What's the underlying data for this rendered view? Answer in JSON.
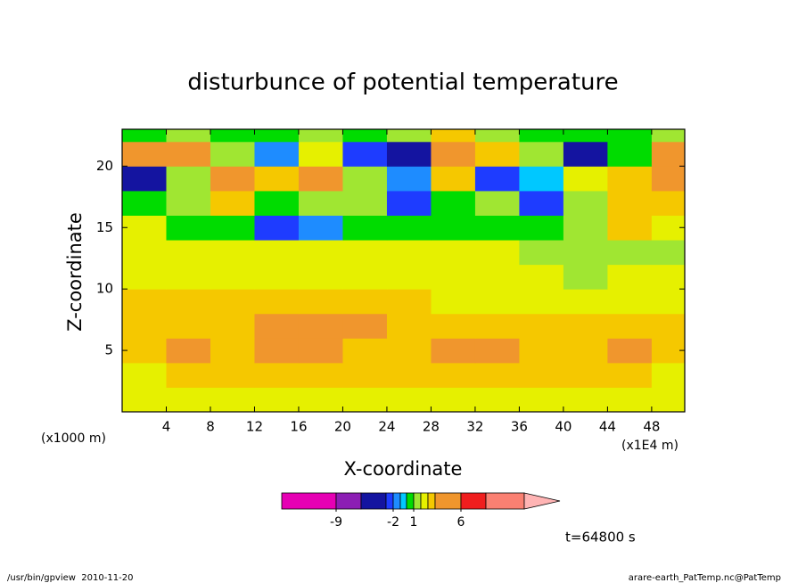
{
  "chart_data": {
    "type": "contour",
    "title": "disturbunce of potential temperature",
    "x_label": "X-coordinate",
    "y_label": "Z-coordinate",
    "x_unit": "(x1E4 m)",
    "y_unit": "(x1000 m)",
    "xlim": [
      0,
      51
    ],
    "ylim": [
      0,
      23
    ],
    "xticks": [
      4,
      8,
      12,
      16,
      20,
      24,
      28,
      32,
      36,
      40,
      44,
      48
    ],
    "yticks": [
      5,
      10,
      15,
      20
    ],
    "field": {
      "x": [
        2,
        6,
        10,
        14,
        18,
        22,
        26,
        30,
        34,
        38,
        42,
        46,
        50
      ],
      "z": [
        1,
        3,
        5,
        7,
        9,
        11,
        13,
        15,
        17,
        19,
        21,
        23
      ],
      "values": [
        [
          2.5,
          2.5,
          2.5,
          2.5,
          2.5,
          2.5,
          2.5,
          2.5,
          2.5,
          2.5,
          2.5,
          2.5,
          2.5
        ],
        [
          2.5,
          3.5,
          3.5,
          3.5,
          3.5,
          3.5,
          3.5,
          3.5,
          3.5,
          3.5,
          3.5,
          3.5,
          2.5
        ],
        [
          3.5,
          5,
          3.5,
          5,
          5,
          3.5,
          3.5,
          5,
          5,
          3.5,
          3.5,
          5,
          3.5
        ],
        [
          3.5,
          3.5,
          3.5,
          5,
          5,
          5,
          3.5,
          3.5,
          3.5,
          3.5,
          3.5,
          3.5,
          3.5
        ],
        [
          3.5,
          3.5,
          3.5,
          3.5,
          3.5,
          3.5,
          3.5,
          2.5,
          2.5,
          2.5,
          2.5,
          2.5,
          2.5
        ],
        [
          2.5,
          2.5,
          2.5,
          2.5,
          2.5,
          2.5,
          2.5,
          2.5,
          2.5,
          2.5,
          1.5,
          2.5,
          2.5
        ],
        [
          2.5,
          2.5,
          2.5,
          2.5,
          2.5,
          2.5,
          2.5,
          2.5,
          2.5,
          1.5,
          1.5,
          1.5,
          1.5
        ],
        [
          2.5,
          0.5,
          0.5,
          -2.5,
          -1.5,
          0.5,
          0.5,
          0.5,
          0.5,
          0.5,
          1.5,
          3.5,
          2.5
        ],
        [
          0.5,
          1.5,
          3.5,
          0.5,
          1.5,
          1.5,
          -2.5,
          0.5,
          1.5,
          -2.5,
          1.5,
          3.5,
          3.5
        ],
        [
          -4.5,
          1.5,
          5,
          3.5,
          5,
          1.5,
          -1.5,
          3.5,
          -2.5,
          -0.5,
          2.5,
          3.5,
          5
        ],
        [
          5,
          5,
          1.5,
          -1.5,
          2.5,
          -2.5,
          -4.5,
          5,
          3.5,
          1.5,
          -4.5,
          0.5,
          5
        ],
        [
          0.5,
          1.5,
          0.5,
          0.5,
          1.5,
          0.5,
          1.5,
          3.5,
          1.5,
          0.5,
          0.5,
          0.5,
          1.5
        ]
      ]
    },
    "colorbar": {
      "levels": [
        -15,
        -9,
        -6,
        -3,
        -2,
        -1,
        0,
        1,
        2,
        3,
        4,
        6,
        9,
        15
      ],
      "colors": [
        "#e600b4",
        "#8c1eb4",
        "#1414a0",
        "#1e3cff",
        "#1e8cff",
        "#00c8ff",
        "#00dc00",
        "#a0e632",
        "#e6f000",
        "#f5c800",
        "#f0962d",
        "#f01e1e",
        "#fa8072"
      ],
      "extend_color": "#ffb4b4",
      "ticks": [
        -9,
        -2,
        1,
        6
      ]
    },
    "annotation": "t=64800 s",
    "footer_left": "/usr/bin/gpview  2010-11-20",
    "footer_right": "arare-earth_PatTemp.nc@PatTemp"
  }
}
